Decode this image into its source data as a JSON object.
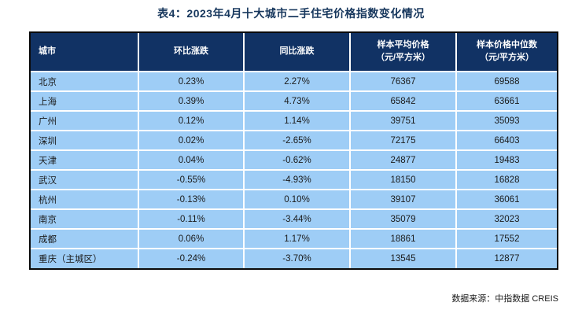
{
  "page": {
    "title": "表4：2023年4月十大城市二手住宅价格指数变化情况",
    "source_note": "数据来源：中指数据 CREIS"
  },
  "colors": {
    "title_text": "#17375d",
    "header_bg": "#113264",
    "header_text": "#ffffff",
    "row_bg": "#9ecdf6",
    "gridline": "#ffffff",
    "outer_border": "#0a0a0a",
    "body_text": "#1a1a1a"
  },
  "table": {
    "headers": {
      "city": "城市",
      "mom": "环比涨跌",
      "yoy": "同比涨跌",
      "avg_line1": "样本平均价格",
      "avg_line2": "（元/平方米）",
      "median_line1": "样本价格中位数",
      "median_line2": "（元/平方米）"
    },
    "rows": [
      {
        "city": "北京",
        "mom": "0.23%",
        "yoy": "2.27%",
        "avg": "76367",
        "median": "69588"
      },
      {
        "city": "上海",
        "mom": "0.39%",
        "yoy": "4.73%",
        "avg": "65842",
        "median": "63661"
      },
      {
        "city": "广州",
        "mom": "0.12%",
        "yoy": "1.14%",
        "avg": "39751",
        "median": "35093"
      },
      {
        "city": "深圳",
        "mom": "0.02%",
        "yoy": "-2.65%",
        "avg": "72175",
        "median": "66403"
      },
      {
        "city": "天津",
        "mom": "0.04%",
        "yoy": "-0.62%",
        "avg": "24877",
        "median": "19483"
      },
      {
        "city": "武汉",
        "mom": "-0.55%",
        "yoy": "-4.93%",
        "avg": "18150",
        "median": "16828"
      },
      {
        "city": "杭州",
        "mom": "-0.13%",
        "yoy": "0.10%",
        "avg": "39107",
        "median": "36061"
      },
      {
        "city": "南京",
        "mom": "-0.11%",
        "yoy": "-3.44%",
        "avg": "35079",
        "median": "32023"
      },
      {
        "city": "成都",
        "mom": "0.06%",
        "yoy": "1.17%",
        "avg": "18861",
        "median": "17552"
      },
      {
        "city": "重庆（主城区）",
        "mom": "-0.24%",
        "yoy": "-3.70%",
        "avg": "13545",
        "median": "12877"
      }
    ]
  }
}
